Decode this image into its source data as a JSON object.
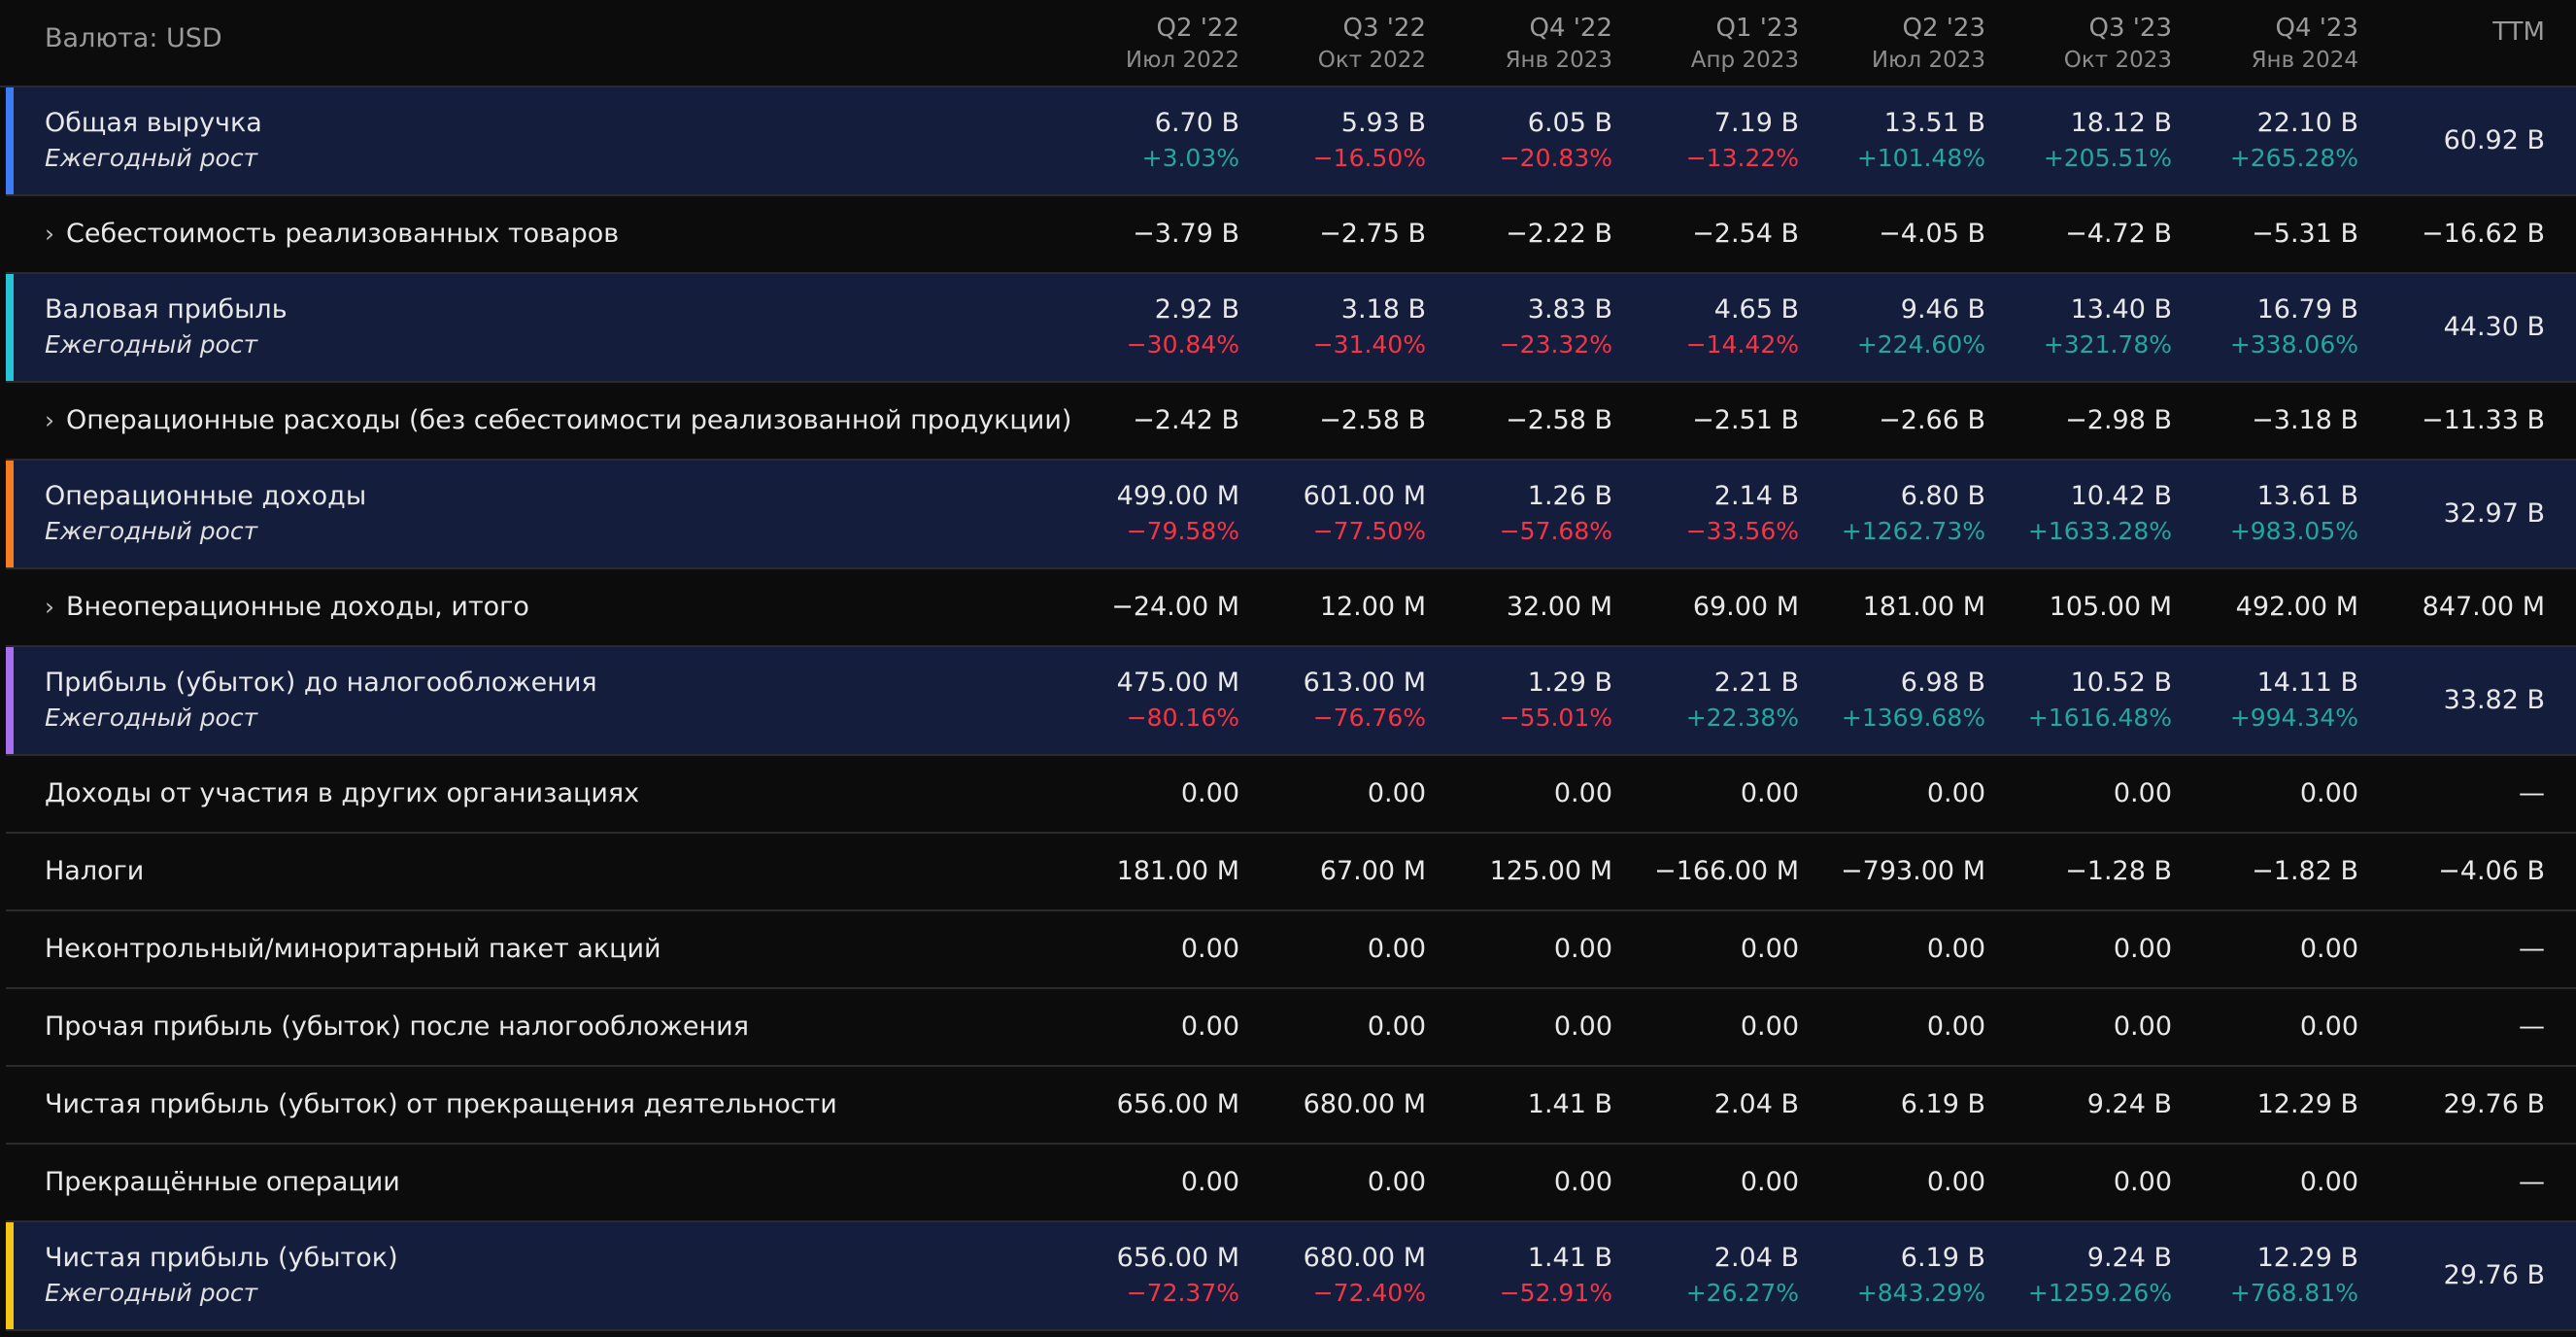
{
  "currency_label": "Валюта: USD",
  "columns": [
    {
      "q": "Q2 '22",
      "d": "Июл 2022"
    },
    {
      "q": "Q3 '22",
      "d": "Окт 2022"
    },
    {
      "q": "Q4 '22",
      "d": "Янв 2023"
    },
    {
      "q": "Q1 '23",
      "d": "Апр 2023"
    },
    {
      "q": "Q2 '23",
      "d": "Июл 2023"
    },
    {
      "q": "Q3 '23",
      "d": "Окт 2023"
    },
    {
      "q": "Q4 '23",
      "d": "Янв 2024"
    },
    {
      "q": "TTM",
      "d": ""
    }
  ],
  "rows": [
    {
      "label": "Общая выручка",
      "sub": "Ежегодный рост",
      "highlight": true,
      "color": "#3d7bf7",
      "expandable": false,
      "values": [
        "6.70 B",
        "5.93 B",
        "6.05 B",
        "7.19 B",
        "13.51 B",
        "18.12 B",
        "22.10 B",
        "60.92 B"
      ],
      "growth": [
        "+3.03%",
        "−16.50%",
        "−20.83%",
        "−13.22%",
        "+101.48%",
        "+205.51%",
        "+265.28%",
        ""
      ]
    },
    {
      "label": "Себестоимость реализованных товаров",
      "sub": "",
      "highlight": false,
      "color": "",
      "expandable": true,
      "values": [
        "−3.79 B",
        "−2.75 B",
        "−2.22 B",
        "−2.54 B",
        "−4.05 B",
        "−4.72 B",
        "−5.31 B",
        "−16.62 B"
      ],
      "growth": []
    },
    {
      "label": "Валовая прибыль",
      "sub": "Ежегодный рост",
      "highlight": true,
      "color": "#27c3d6",
      "expandable": false,
      "values": [
        "2.92 B",
        "3.18 B",
        "3.83 B",
        "4.65 B",
        "9.46 B",
        "13.40 B",
        "16.79 B",
        "44.30 B"
      ],
      "growth": [
        "−30.84%",
        "−31.40%",
        "−23.32%",
        "−14.42%",
        "+224.60%",
        "+321.78%",
        "+338.06%",
        ""
      ]
    },
    {
      "label": "Операционные расходы (без себестоимости реализованной продукции)",
      "sub": "",
      "highlight": false,
      "color": "",
      "expandable": true,
      "values": [
        "−2.42 B",
        "−2.58 B",
        "−2.58 B",
        "−2.51 B",
        "−2.66 B",
        "−2.98 B",
        "−3.18 B",
        "−11.33 B"
      ],
      "growth": []
    },
    {
      "label": "Операционные доходы",
      "sub": "Ежегодный рост",
      "highlight": true,
      "color": "#f57c22",
      "expandable": false,
      "values": [
        "499.00 M",
        "601.00 M",
        "1.26 B",
        "2.14 B",
        "6.80 B",
        "10.42 B",
        "13.61 B",
        "32.97 B"
      ],
      "growth": [
        "−79.58%",
        "−77.50%",
        "−57.68%",
        "−33.56%",
        "+1262.73%",
        "+1633.28%",
        "+983.05%",
        ""
      ]
    },
    {
      "label": "Внеоперационные доходы, итого",
      "sub": "",
      "highlight": false,
      "color": "",
      "expandable": true,
      "values": [
        "−24.00 M",
        "12.00 M",
        "32.00 M",
        "69.00 M",
        "181.00 M",
        "105.00 M",
        "492.00 M",
        "847.00 M"
      ],
      "growth": []
    },
    {
      "label": "Прибыль (убыток) до налогообложения",
      "sub": "Ежегодный рост",
      "highlight": true,
      "color": "#a86ef0",
      "expandable": false,
      "values": [
        "475.00 M",
        "613.00 M",
        "1.29 B",
        "2.21 B",
        "6.98 B",
        "10.52 B",
        "14.11 B",
        "33.82 B"
      ],
      "growth": [
        "−80.16%",
        "−76.76%",
        "−55.01%",
        "+22.38%",
        "+1369.68%",
        "+1616.48%",
        "+994.34%",
        ""
      ]
    },
    {
      "label": "Доходы от участия в других организациях",
      "sub": "",
      "highlight": false,
      "color": "",
      "expandable": false,
      "values": [
        "0.00",
        "0.00",
        "0.00",
        "0.00",
        "0.00",
        "0.00",
        "0.00",
        "—"
      ],
      "growth": []
    },
    {
      "label": "Налоги",
      "sub": "",
      "highlight": false,
      "color": "",
      "expandable": false,
      "values": [
        "181.00 M",
        "67.00 M",
        "125.00 M",
        "−166.00 M",
        "−793.00 M",
        "−1.28 B",
        "−1.82 B",
        "−4.06 B"
      ],
      "growth": []
    },
    {
      "label": "Неконтрольный/миноритарный пакет акций",
      "sub": "",
      "highlight": false,
      "color": "",
      "expandable": false,
      "values": [
        "0.00",
        "0.00",
        "0.00",
        "0.00",
        "0.00",
        "0.00",
        "0.00",
        "—"
      ],
      "growth": []
    },
    {
      "label": "Прочая прибыль (убыток) после налогообложения",
      "sub": "",
      "highlight": false,
      "color": "",
      "expandable": false,
      "values": [
        "0.00",
        "0.00",
        "0.00",
        "0.00",
        "0.00",
        "0.00",
        "0.00",
        "—"
      ],
      "growth": []
    },
    {
      "label": "Чистая прибыль (убыток) от прекращения деятельности",
      "sub": "",
      "highlight": false,
      "color": "",
      "expandable": false,
      "values": [
        "656.00 M",
        "680.00 M",
        "1.41 B",
        "2.04 B",
        "6.19 B",
        "9.24 B",
        "12.29 B",
        "29.76 B"
      ],
      "growth": []
    },
    {
      "label": "Прекращённые операции",
      "sub": "",
      "highlight": false,
      "color": "",
      "expandable": false,
      "values": [
        "0.00",
        "0.00",
        "0.00",
        "0.00",
        "0.00",
        "0.00",
        "0.00",
        "—"
      ],
      "growth": []
    },
    {
      "label": "Чистая прибыль (убыток)",
      "sub": "Ежегодный рост",
      "highlight": true,
      "color": "#f5c518",
      "expandable": false,
      "values": [
        "656.00 M",
        "680.00 M",
        "1.41 B",
        "2.04 B",
        "6.19 B",
        "9.24 B",
        "12.29 B",
        "29.76 B"
      ],
      "growth": [
        "−72.37%",
        "−72.40%",
        "−52.91%",
        "+26.27%",
        "+843.29%",
        "+1259.26%",
        "+768.81%",
        ""
      ]
    }
  ]
}
